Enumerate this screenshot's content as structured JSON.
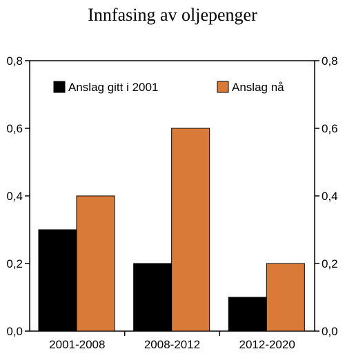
{
  "chart_data": {
    "type": "bar",
    "title": "Innfasing av oljepenger",
    "xlabel": "",
    "ylabel": "",
    "categories": [
      "2001-2008",
      "2008-2012",
      "2012-2020"
    ],
    "series": [
      {
        "name": "Anslag gitt i 2001",
        "values": [
          0.3,
          0.2,
          0.1
        ],
        "color": "#000000"
      },
      {
        "name": "Anslag nå",
        "values": [
          0.4,
          0.6,
          0.2
        ],
        "color": "#d97a38"
      }
    ],
    "ylim": [
      0,
      0.8
    ],
    "yticks": [
      "0,0",
      "0,2",
      "0,4",
      "0,6",
      "0,8"
    ],
    "ytick_values": [
      0,
      0.2,
      0.4,
      0.6,
      0.8
    ],
    "secondary_y_axis": true,
    "grid": false,
    "legend_position": "top"
  }
}
